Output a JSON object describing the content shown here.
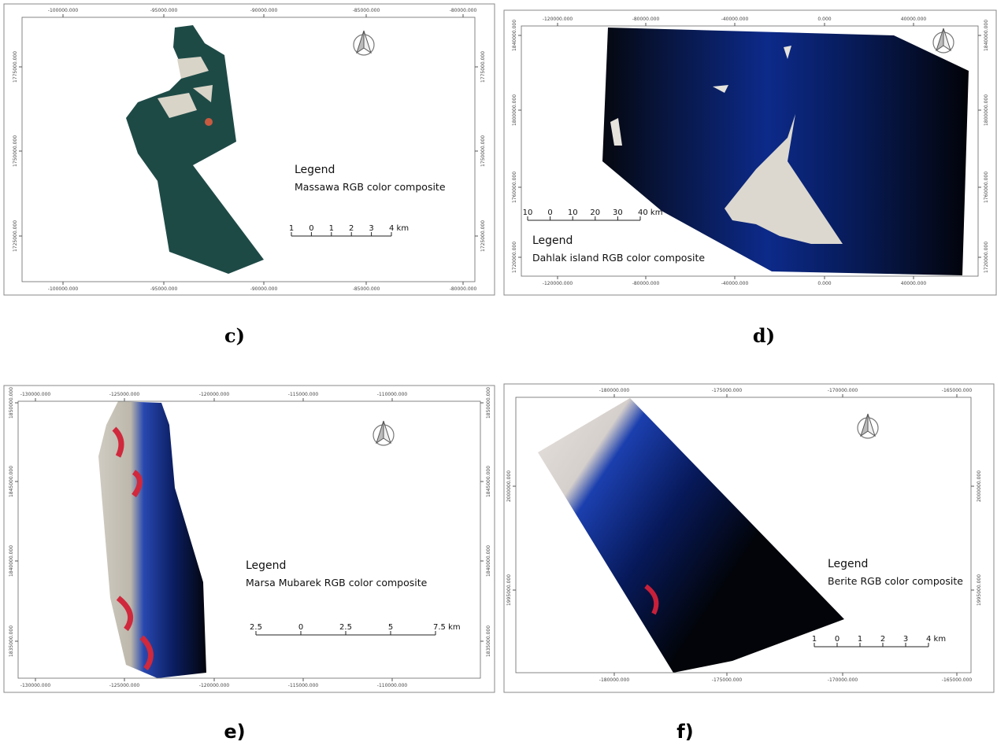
{
  "panels": [
    {
      "label": "c)",
      "legend_title": "Legend",
      "legend_text": "Massawa RGB color composite",
      "scale": [
        "1",
        "0",
        "1",
        "2",
        "3",
        "4 km"
      ],
      "x_ticks": [
        "-100000.000",
        "-95000.000",
        "-90000.000",
        "-85000.000",
        "-80000.000"
      ],
      "y_ticks": [
        "1775000.000",
        "1750000.000",
        "1725000.000"
      ]
    },
    {
      "label": "d)",
      "legend_title": "Legend",
      "legend_text": "Dahlak island RGB color composite",
      "scale": [
        "10",
        "0",
        "10",
        "20",
        "30",
        "40 km"
      ],
      "x_ticks": [
        "-120000.000",
        "-80000.000",
        "-40000.000",
        "0.000",
        "40000.000"
      ],
      "y_ticks": [
        "1840000.000",
        "1800000.000",
        "1760000.000",
        "1720000.000"
      ]
    },
    {
      "label": "e)",
      "legend_title": "Legend",
      "legend_text": "Marsa Mubarek RGB color composite",
      "scale": [
        "2.5",
        "0",
        "2.5",
        "5",
        "7.5 km"
      ],
      "x_ticks": [
        "-130000.000",
        "-125000.000",
        "-120000.000",
        "-115000.000",
        "-110000.000"
      ],
      "y_ticks": [
        "1850000.000",
        "1845000.000",
        "1840000.000",
        "1835000.000"
      ]
    },
    {
      "label": "f)",
      "legend_title": "Legend",
      "legend_text": "Berite RGB color composite",
      "scale": [
        "1",
        "0",
        "1",
        "2",
        "3",
        "4 km"
      ],
      "x_ticks": [
        "-180000.000",
        "-175000.000",
        "-170000.000",
        "-165000.000"
      ],
      "y_ticks": [
        "2000000.000",
        "1995000.000"
      ]
    }
  ]
}
